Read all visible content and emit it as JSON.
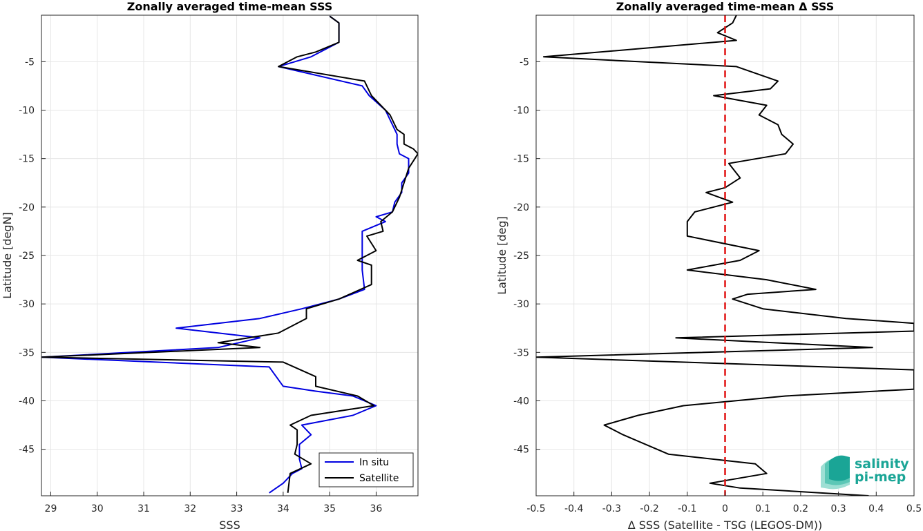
{
  "colors": {
    "insitu": "#0000e0",
    "satellite": "#000000",
    "zero_line": "#e01010",
    "logo": "#1aa596"
  },
  "logo": {
    "line1": "salinity",
    "line2": "pi-mep"
  },
  "chart_data": [
    {
      "type": "line",
      "title": "Zonally averaged time-mean SSS",
      "xlabel": "SSS",
      "ylabel": "Latitude [degN]",
      "xlim": [
        28.8,
        36.9
      ],
      "ylim": [
        -49.8,
        -0.2
      ],
      "xticks": [
        29,
        30,
        31,
        32,
        33,
        34,
        35,
        36
      ],
      "yticks": [
        -5,
        -10,
        -15,
        -20,
        -25,
        -30,
        -35,
        -40,
        -45
      ],
      "grid": true,
      "legend_position": "bottom-right",
      "series": [
        {
          "name": "In situ",
          "color_key": "insitu",
          "x": [
            35.0,
            35.2,
            35.2,
            34.6,
            33.9,
            35.7,
            35.85,
            36.2,
            36.35,
            36.45,
            36.45,
            36.5,
            36.7,
            36.7,
            36.55,
            36.55,
            36.4,
            36.35,
            36.0,
            36.2,
            35.7,
            35.7,
            35.7,
            35.7,
            35.75,
            35.2,
            34.4,
            33.5,
            31.7,
            33.5,
            32.6,
            28.8,
            33.7,
            34.0,
            34.7,
            35.5,
            36.0,
            35.5,
            34.4,
            34.6,
            34.35,
            34.35,
            34.4,
            34.2,
            34.0,
            33.7
          ],
          "y": [
            -0.3,
            -1.0,
            -3.0,
            -4.5,
            -5.5,
            -7.5,
            -8.5,
            -10.0,
            -11.5,
            -12.5,
            -13.5,
            -14.5,
            -15.0,
            -16.5,
            -17.5,
            -18.5,
            -19.5,
            -20.5,
            -21.0,
            -21.5,
            -22.5,
            -23.5,
            -25.0,
            -26.5,
            -28.5,
            -29.5,
            -30.5,
            -31.5,
            -32.5,
            -33.5,
            -34.5,
            -35.5,
            -36.5,
            -38.5,
            -39.0,
            -39.5,
            -40.5,
            -41.5,
            -42.5,
            -43.5,
            -44.5,
            -46.0,
            -47.0,
            -47.5,
            -48.5,
            -49.5
          ]
        },
        {
          "name": "Satellite",
          "color_key": "satellite",
          "x": [
            35.0,
            35.2,
            35.2,
            34.7,
            34.3,
            33.9,
            35.75,
            35.9,
            36.3,
            36.45,
            36.6,
            36.6,
            36.8,
            36.9,
            36.7,
            36.6,
            36.5,
            36.35,
            36.1,
            36.15,
            35.8,
            36.0,
            35.6,
            35.9,
            35.9,
            35.2,
            34.5,
            34.5,
            33.9,
            32.6,
            33.5,
            28.8,
            34.0,
            34.7,
            34.7,
            35.6,
            35.95,
            34.6,
            34.15,
            34.3,
            34.3,
            34.25,
            34.6,
            34.15,
            34.1
          ],
          "y": [
            -0.3,
            -1.0,
            -3.0,
            -4.0,
            -4.5,
            -5.5,
            -7.0,
            -8.5,
            -10.5,
            -12.0,
            -12.5,
            -13.5,
            -14.0,
            -14.5,
            -16.0,
            -17.5,
            -19.0,
            -20.5,
            -21.5,
            -22.5,
            -23.0,
            -24.5,
            -25.5,
            -26.0,
            -28.0,
            -29.5,
            -30.5,
            -31.5,
            -33.0,
            -34.0,
            -34.5,
            -35.5,
            -36.0,
            -37.5,
            -38.5,
            -39.5,
            -40.5,
            -41.5,
            -42.5,
            -43.0,
            -44.5,
            -45.5,
            -46.5,
            -47.5,
            -49.5
          ]
        }
      ]
    },
    {
      "type": "line",
      "title": "Zonally averaged time-mean Δ SSS",
      "xlabel": "Δ SSS (Satellite - TSG (LEGOS-DM))",
      "ylabel": "Latitude [deg]",
      "xlim": [
        -0.5,
        0.5
      ],
      "ylim": [
        -49.8,
        -0.2
      ],
      "xticks": [
        -0.5,
        -0.4,
        -0.3,
        -0.2,
        -0.1,
        0,
        0.1,
        0.2,
        0.3,
        0.4,
        0.5
      ],
      "xtick_labels": [
        "-0.5",
        "-0.4",
        "-0.3",
        "-0.2",
        "-0.1",
        "0",
        "0.1",
        "0.2",
        "0.3",
        "0.4",
        "0.5"
      ],
      "yticks": [
        -5,
        -10,
        -15,
        -20,
        -25,
        -30,
        -35,
        -40,
        -45
      ],
      "grid": true,
      "reference_line": {
        "x": 0,
        "style": "dashed",
        "color_key": "zero_line"
      },
      "series": [
        {
          "color_key": "satellite",
          "x": [
            0.03,
            0.02,
            -0.02,
            0.03,
            -0.48,
            0.03,
            0.14,
            0.12,
            -0.03,
            0.11,
            0.09,
            0.14,
            0.15,
            0.18,
            0.16,
            0.01,
            0.04,
            0.0,
            -0.05,
            0.02,
            -0.08,
            -0.1,
            -0.1,
            0.09,
            0.04,
            -0.1,
            0.11,
            0.24,
            0.06,
            0.02,
            0.1,
            0.32,
            0.5,
            0.5,
            -0.13,
            0.39,
            -0.5,
            0.5,
            0.5,
            0.16,
            -0.11,
            -0.23,
            -0.32,
            -0.27,
            -0.15,
            0.08,
            0.11,
            -0.04,
            0.04,
            0.38
          ],
          "y": [
            -0.2,
            -1.0,
            -2.0,
            -2.8,
            -4.5,
            -5.5,
            -7.0,
            -7.8,
            -8.5,
            -9.5,
            -10.5,
            -11.5,
            -12.5,
            -13.5,
            -14.5,
            -15.5,
            -17.0,
            -18.0,
            -18.5,
            -19.5,
            -20.5,
            -21.5,
            -23.0,
            -24.5,
            -25.5,
            -26.5,
            -27.5,
            -28.5,
            -29.0,
            -29.5,
            -30.5,
            -31.5,
            -32.0,
            -32.8,
            -33.5,
            -34.5,
            -35.5,
            -36.8,
            -38.8,
            -39.5,
            -40.5,
            -41.5,
            -42.5,
            -43.5,
            -45.5,
            -46.5,
            -47.5,
            -48.5,
            -49.0,
            -49.8
          ]
        }
      ]
    }
  ]
}
